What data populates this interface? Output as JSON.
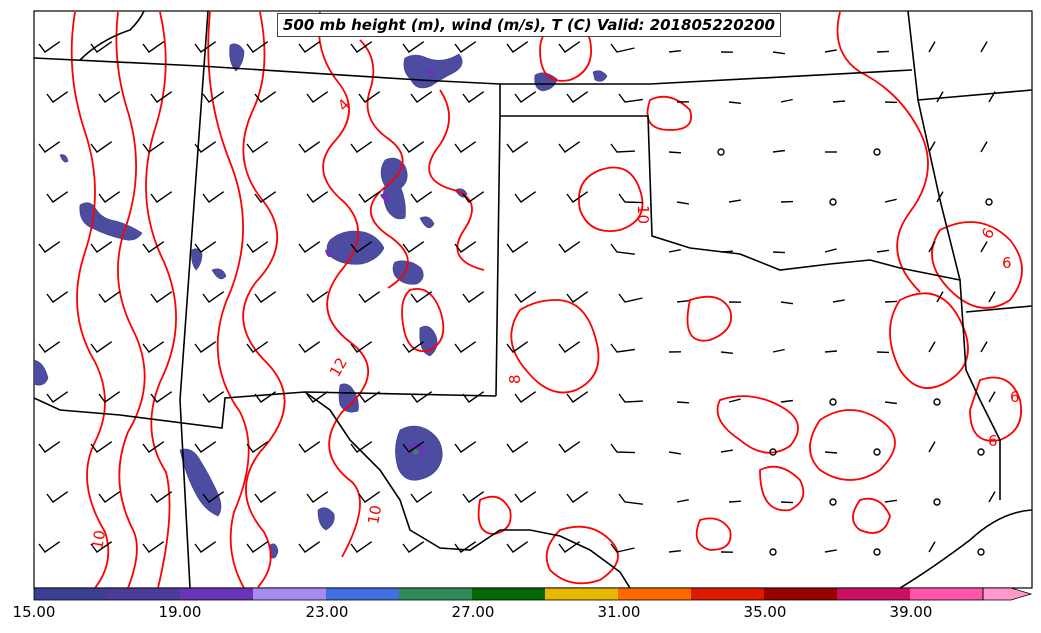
{
  "title": "500 mb height (m), wind (m/s), T (C) Valid: 201805220200",
  "contour_labels": [
    "4",
    "12",
    "8",
    "10",
    "10",
    "10",
    "6",
    "6",
    "6",
    "6"
  ],
  "colorbar": {
    "tick_labels": [
      "15.00",
      "19.00",
      "23.00",
      "27.00",
      "31.00",
      "35.00",
      "39.00"
    ],
    "colors": [
      "#3b3f94",
      "#4b3c9c",
      "#6a34b8",
      "#a78cf0",
      "#3f6fe0",
      "#2e8b57",
      "#056a05",
      "#e8b800",
      "#ff6a00",
      "#dd1a00",
      "#990000",
      "#cc1060",
      "#ff55aa",
      "#ff99cc"
    ]
  },
  "colors": {
    "contour": "#ff0000",
    "wind_fill": "#4c4ca0",
    "border": "#000000"
  }
}
